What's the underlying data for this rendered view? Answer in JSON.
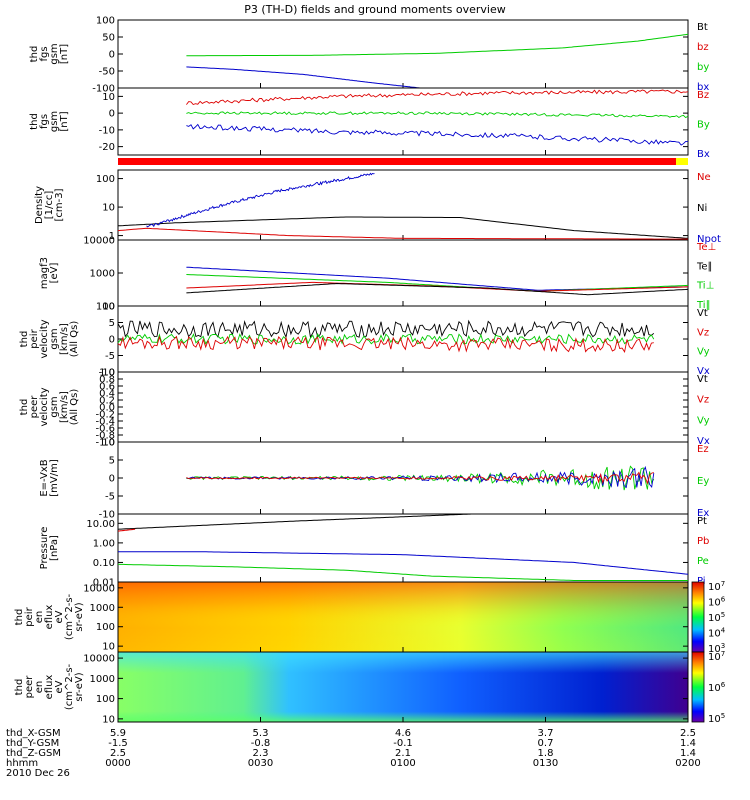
{
  "title": "P3 (TH-D) fields and ground moments overview",
  "colors": {
    "black": "#000000",
    "red": "#dd0000",
    "green": "#00cc00",
    "blue": "#0000cc",
    "yellow": "#ffff00"
  },
  "time_ticks": [
    "0000",
    "0030",
    "0100",
    "0130",
    "0200"
  ],
  "footer": {
    "rows": [
      {
        "label": "thd_X-GSM",
        "values": [
          "5.9",
          "5.3",
          "4.6",
          "3.7",
          "2.5"
        ]
      },
      {
        "label": "thd_Y-GSM",
        "values": [
          "-1.5",
          "-0.8",
          "-0.1",
          "0.7",
          "1.4"
        ]
      },
      {
        "label": "thd_Z-GSM",
        "values": [
          "2.5",
          "2.3",
          "2.1",
          "1.8",
          "1.4"
        ]
      },
      {
        "label": "hhmm",
        "values": [
          "0000",
          "0030",
          "0100",
          "0130",
          "0200"
        ]
      }
    ],
    "date": "2010 Dec 26"
  },
  "chart_data": [
    {
      "type": "line",
      "ylabel_lines": [
        "thd",
        "fgs",
        "gsm",
        "[nT]"
      ],
      "ylim": [
        -100,
        100
      ],
      "ticks": [
        "100",
        "50",
        "0",
        "-50",
        "-100"
      ],
      "tick_values": [
        100,
        50,
        0,
        -50,
        -100
      ],
      "legend": [
        {
          "text": "Bt",
          "color": "black"
        },
        {
          "text": "bz",
          "color": "red"
        },
        {
          "text": "by",
          "color": "green"
        },
        {
          "text": "bx",
          "color": "blue"
        }
      ],
      "series": [
        {
          "color": "green",
          "start": 0.12,
          "end": 1.0,
          "x": [
            0,
            0.25,
            0.5,
            0.75,
            0.9,
            1.0
          ],
          "y": [
            -5,
            -4,
            2,
            18,
            38,
            58
          ],
          "noise": 0
        },
        {
          "color": "blue",
          "start": 0.12,
          "end": 0.53,
          "x": [
            0,
            0.2,
            0.5,
            0.8,
            1.0
          ],
          "y": [
            -38,
            -45,
            -60,
            -85,
            -100
          ],
          "noise": 0
        }
      ]
    },
    {
      "type": "line",
      "ylabel_lines": [
        "thd",
        "fgs",
        "gsm",
        "[nT]"
      ],
      "ylim": [
        -25,
        15
      ],
      "ticks": [
        "10",
        "0",
        "-10",
        "-20"
      ],
      "tick_values": [
        10,
        0,
        -10,
        -20
      ],
      "legend": [
        {
          "text": "Bz",
          "color": "red"
        },
        {
          "text": "By",
          "color": "green"
        },
        {
          "text": "Bx",
          "color": "blue"
        }
      ],
      "series": [
        {
          "color": "red",
          "start": 0.12,
          "end": 1.0,
          "x": [
            0,
            0.3,
            0.6,
            1.0
          ],
          "y": [
            6,
            10,
            12,
            13
          ],
          "noise": 1.2
        },
        {
          "color": "green",
          "start": 0.12,
          "end": 1.0,
          "x": [
            0,
            0.5,
            1.0
          ],
          "y": [
            0,
            0,
            -2
          ],
          "noise": 0.8
        },
        {
          "color": "blue",
          "start": 0.12,
          "end": 1.0,
          "x": [
            0,
            0.3,
            0.6,
            1.0
          ],
          "y": [
            -8,
            -11,
            -13,
            -18
          ],
          "noise": 1.5
        }
      ]
    },
    {
      "type": "line",
      "log": true,
      "ylabel_lines": [
        "Density",
        "[1/cc]",
        "[cm-3]"
      ],
      "ylim": [
        0.7,
        200
      ],
      "ticks": [
        "100",
        "10",
        "1"
      ],
      "tick_values": [
        100,
        10,
        1
      ],
      "legend": [
        {
          "text": "Ne",
          "color": "red"
        },
        {
          "text": "Ni",
          "color": "black"
        },
        {
          "text": "Npot",
          "color": "blue"
        }
      ],
      "series": [
        {
          "color": "black",
          "start": 0,
          "end": 1.0,
          "x": [
            0,
            0.1,
            0.4,
            0.6,
            0.8,
            1.0
          ],
          "y": [
            2.2,
            2.8,
            4.5,
            4.3,
            1.5,
            0.8
          ],
          "noise": 0
        },
        {
          "color": "red",
          "start": 0,
          "end": 1.0,
          "x": [
            0,
            0.05,
            0.3,
            0.5,
            1.0
          ],
          "y": [
            1.5,
            1.8,
            1.0,
            0.8,
            0.75
          ],
          "noise": 0
        },
        {
          "color": "blue",
          "start": 0.05,
          "end": 0.45,
          "x": [
            0,
            0.3,
            0.6,
            1.0
          ],
          "y": [
            2,
            10,
            40,
            150
          ],
          "noise": 0.1
        }
      ]
    },
    {
      "type": "line",
      "log": true,
      "ylabel_lines": [
        "magf3",
        "[eV]"
      ],
      "ylim": [
        100,
        10000
      ],
      "ticks": [
        "10000",
        "1000",
        "100"
      ],
      "tick_values": [
        10000,
        1000,
        100
      ],
      "legend": [
        {
          "text": "Te⊥",
          "color": "red"
        },
        {
          "text": "Te∥",
          "color": "black"
        },
        {
          "text": "Ti⊥",
          "color": "green"
        },
        {
          "text": "Ti∥",
          "color": "green"
        }
      ],
      "series": [
        {
          "color": "blue",
          "start": 0.12,
          "end": 1.0,
          "x": [
            0,
            0.4,
            0.7,
            1.0
          ],
          "y": [
            1500,
            700,
            300,
            380
          ],
          "noise": 0
        },
        {
          "color": "green",
          "start": 0.12,
          "end": 1.0,
          "x": [
            0,
            0.4,
            0.7,
            1.0
          ],
          "y": [
            900,
            520,
            280,
            420
          ],
          "noise": 0
        },
        {
          "color": "red",
          "start": 0.12,
          "end": 1.0,
          "x": [
            0,
            0.25,
            0.5,
            0.7,
            1.0
          ],
          "y": [
            350,
            520,
            400,
            280,
            380
          ],
          "noise": 0
        },
        {
          "color": "black",
          "start": 0.12,
          "end": 1.0,
          "x": [
            0,
            0.3,
            0.6,
            0.8,
            1.0
          ],
          "y": [
            250,
            480,
            350,
            220,
            320
          ],
          "noise": 0
        }
      ]
    },
    {
      "type": "line",
      "ylabel_lines": [
        "thd",
        "peir",
        "velocity",
        "gsm",
        "[km/s]",
        "(All Qs)"
      ],
      "ylim": [
        -10,
        10
      ],
      "ticks": [
        "10",
        "5",
        "0",
        "-5",
        "-10"
      ],
      "tick_values": [
        10,
        5,
        0,
        -5,
        -10
      ],
      "legend": [
        {
          "text": "Vt",
          "color": "black"
        },
        {
          "text": "Vz",
          "color": "red"
        },
        {
          "text": "Vy",
          "color": "green"
        },
        {
          "text": "Vx",
          "color": "blue"
        }
      ],
      "series": [
        {
          "color": "black",
          "start": 0,
          "end": 0.94,
          "x": [
            0,
            1
          ],
          "y": [
            3,
            3
          ],
          "noise": 2.5
        },
        {
          "color": "green",
          "start": 0,
          "end": 0.94,
          "x": [
            0,
            1
          ],
          "y": [
            0,
            0
          ],
          "noise": 1.5
        },
        {
          "color": "red",
          "start": 0,
          "end": 0.94,
          "x": [
            0,
            1
          ],
          "y": [
            -1,
            -2
          ],
          "noise": 2
        }
      ]
    },
    {
      "type": "line",
      "ylabel_lines": [
        "thd",
        "peer",
        "velocity",
        "gsm",
        "[km/s]",
        "(All Qs)"
      ],
      "ylim": [
        -1,
        1
      ],
      "ticks": [
        "1.0",
        "0.8",
        "0.6",
        "0.4",
        "0.2",
        "0.0",
        "-0.2",
        "-0.4",
        "-0.6",
        "-0.8",
        "-1.0"
      ],
      "tick_values": [
        1,
        0.8,
        0.6,
        0.4,
        0.2,
        0,
        -0.2,
        -0.4,
        -0.6,
        -0.8,
        -1
      ],
      "legend": [
        {
          "text": "Vt",
          "color": "black"
        },
        {
          "text": "Vz",
          "color": "red"
        },
        {
          "text": "Vy",
          "color": "green"
        },
        {
          "text": "Vx",
          "color": "blue"
        }
      ],
      "series": []
    },
    {
      "type": "line",
      "ylabel_lines": [
        "E=-VxB",
        "[mV/m]"
      ],
      "ylim": [
        -10,
        10
      ],
      "ticks": [
        "10",
        "5",
        "0",
        "-5",
        "-10"
      ],
      "tick_values": [
        10,
        5,
        0,
        -5,
        -10
      ],
      "legend": [
        {
          "text": "Ez",
          "color": "red"
        },
        {
          "text": "Ey",
          "color": "green"
        },
        {
          "text": "Ex",
          "color": "blue"
        }
      ],
      "series": [
        {
          "color": "green",
          "start": 0.12,
          "end": 0.94,
          "x": [
            0,
            1
          ],
          "y": [
            0,
            0
          ],
          "noise": 0.4,
          "grow": 4
        },
        {
          "color": "blue",
          "start": 0.12,
          "end": 0.94,
          "x": [
            0,
            1
          ],
          "y": [
            0,
            0
          ],
          "noise": 0.3,
          "grow": 3
        },
        {
          "color": "red",
          "start": 0.12,
          "end": 0.94,
          "x": [
            0,
            1
          ],
          "y": [
            0,
            0
          ],
          "noise": 0.2,
          "grow": 1.5
        }
      ]
    },
    {
      "type": "line",
      "log": true,
      "ylabel_lines": [
        "Pressure",
        "[nPa]"
      ],
      "ylim": [
        0.01,
        30
      ],
      "ticks": [
        "10.00",
        "1.00",
        "0.10",
        "0.01"
      ],
      "tick_values": [
        10,
        1,
        0.1,
        0.01
      ],
      "legend": [
        {
          "text": "Pt",
          "color": "black"
        },
        {
          "text": "Pb",
          "color": "red"
        },
        {
          "text": "Pe",
          "color": "green"
        },
        {
          "text": "Pi",
          "color": "blue"
        }
      ],
      "series": [
        {
          "color": "black",
          "start": 0,
          "end": 0.62,
          "x": [
            0,
            0.5,
            1.0
          ],
          "y": [
            5,
            13,
            30
          ],
          "noise": 0
        },
        {
          "color": "blue",
          "start": 0,
          "end": 1.0,
          "x": [
            0,
            0.15,
            0.5,
            0.8,
            1.0
          ],
          "y": [
            0.35,
            0.35,
            0.25,
            0.1,
            0.025
          ],
          "noise": 0
        },
        {
          "color": "green",
          "start": 0,
          "end": 1.0,
          "x": [
            0,
            0.2,
            0.4,
            0.55,
            0.8,
            1.0
          ],
          "y": [
            0.08,
            0.06,
            0.04,
            0.02,
            0.012,
            0.012
          ],
          "noise": 0
        },
        {
          "color": "red",
          "start": 0,
          "end": 0.03,
          "x": [
            0,
            1
          ],
          "y": [
            4,
            5
          ],
          "noise": 0
        }
      ]
    },
    {
      "type": "heatmap",
      "ylabel_lines": [
        "thd",
        "peir",
        "en",
        "eflux",
        "eV",
        "(cm^2-s-",
        "sr-eV)"
      ],
      "ylim": [
        5,
        20000
      ],
      "log": true,
      "ticks": [
        "10000",
        "1000",
        "100",
        "10"
      ],
      "tick_values": [
        10000,
        1000,
        100,
        10
      ],
      "colorbar": {
        "ticks": [
          {
            "text": "10",
            "sup": "7"
          },
          {
            "text": "10",
            "sup": "6"
          },
          {
            "text": "10",
            "sup": "5"
          },
          {
            "text": "10",
            "sup": "4"
          },
          {
            "text": "10",
            "sup": "3"
          }
        ]
      }
    },
    {
      "type": "heatmap",
      "ylabel_lines": [
        "thd",
        "peer",
        "en",
        "eflux",
        "eV",
        "(cm^2-s-",
        "sr-eV)"
      ],
      "ylim": [
        7,
        20000
      ],
      "log": true,
      "ticks": [
        "10000",
        "1000",
        "100",
        "10"
      ],
      "tick_values": [
        10000,
        1000,
        100,
        10
      ],
      "colorbar": {
        "ticks": [
          {
            "text": "10",
            "sup": "7"
          },
          {
            "text": "10",
            "sup": "6"
          },
          {
            "text": "10",
            "sup": "5"
          }
        ]
      }
    }
  ]
}
